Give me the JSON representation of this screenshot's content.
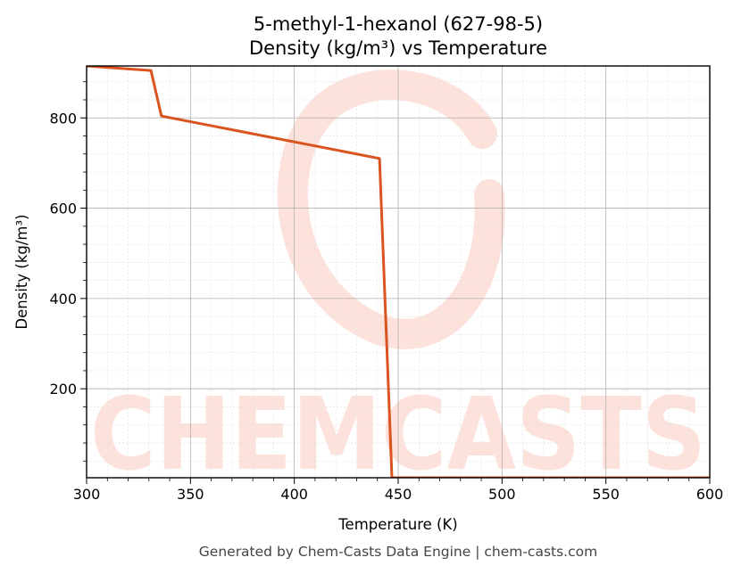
{
  "title_line1": "5-methyl-1-hexanol (627-98-5)",
  "title_line2": "Density (kg/m³) vs Temperature",
  "footer": "Generated by Chem-Casts Data Engine | chem-casts.com",
  "watermark_text": "CHEMCASTS",
  "colors": {
    "line": "#d9541e",
    "watermark": "#fde1db",
    "grid_major": "#b0b0b0",
    "grid_minor": "#e4e4e4"
  },
  "chart_data": {
    "type": "line",
    "title": "5-methyl-1-hexanol (627-98-5)\nDensity (kg/m³) vs Temperature",
    "xlabel": "Temperature (K)",
    "ylabel": "Density (kg/m³)",
    "xlim": [
      300,
      600
    ],
    "ylim": [
      3,
      915
    ],
    "xticks": [
      300,
      350,
      400,
      450,
      500,
      550,
      600
    ],
    "yticks": [
      200,
      400,
      600,
      800
    ],
    "grid": true,
    "series": [
      {
        "x": [
          300,
          331,
          336,
          441,
          447,
          600
        ],
        "y": [
          915,
          905,
          804,
          710,
          3,
          3
        ]
      }
    ]
  }
}
